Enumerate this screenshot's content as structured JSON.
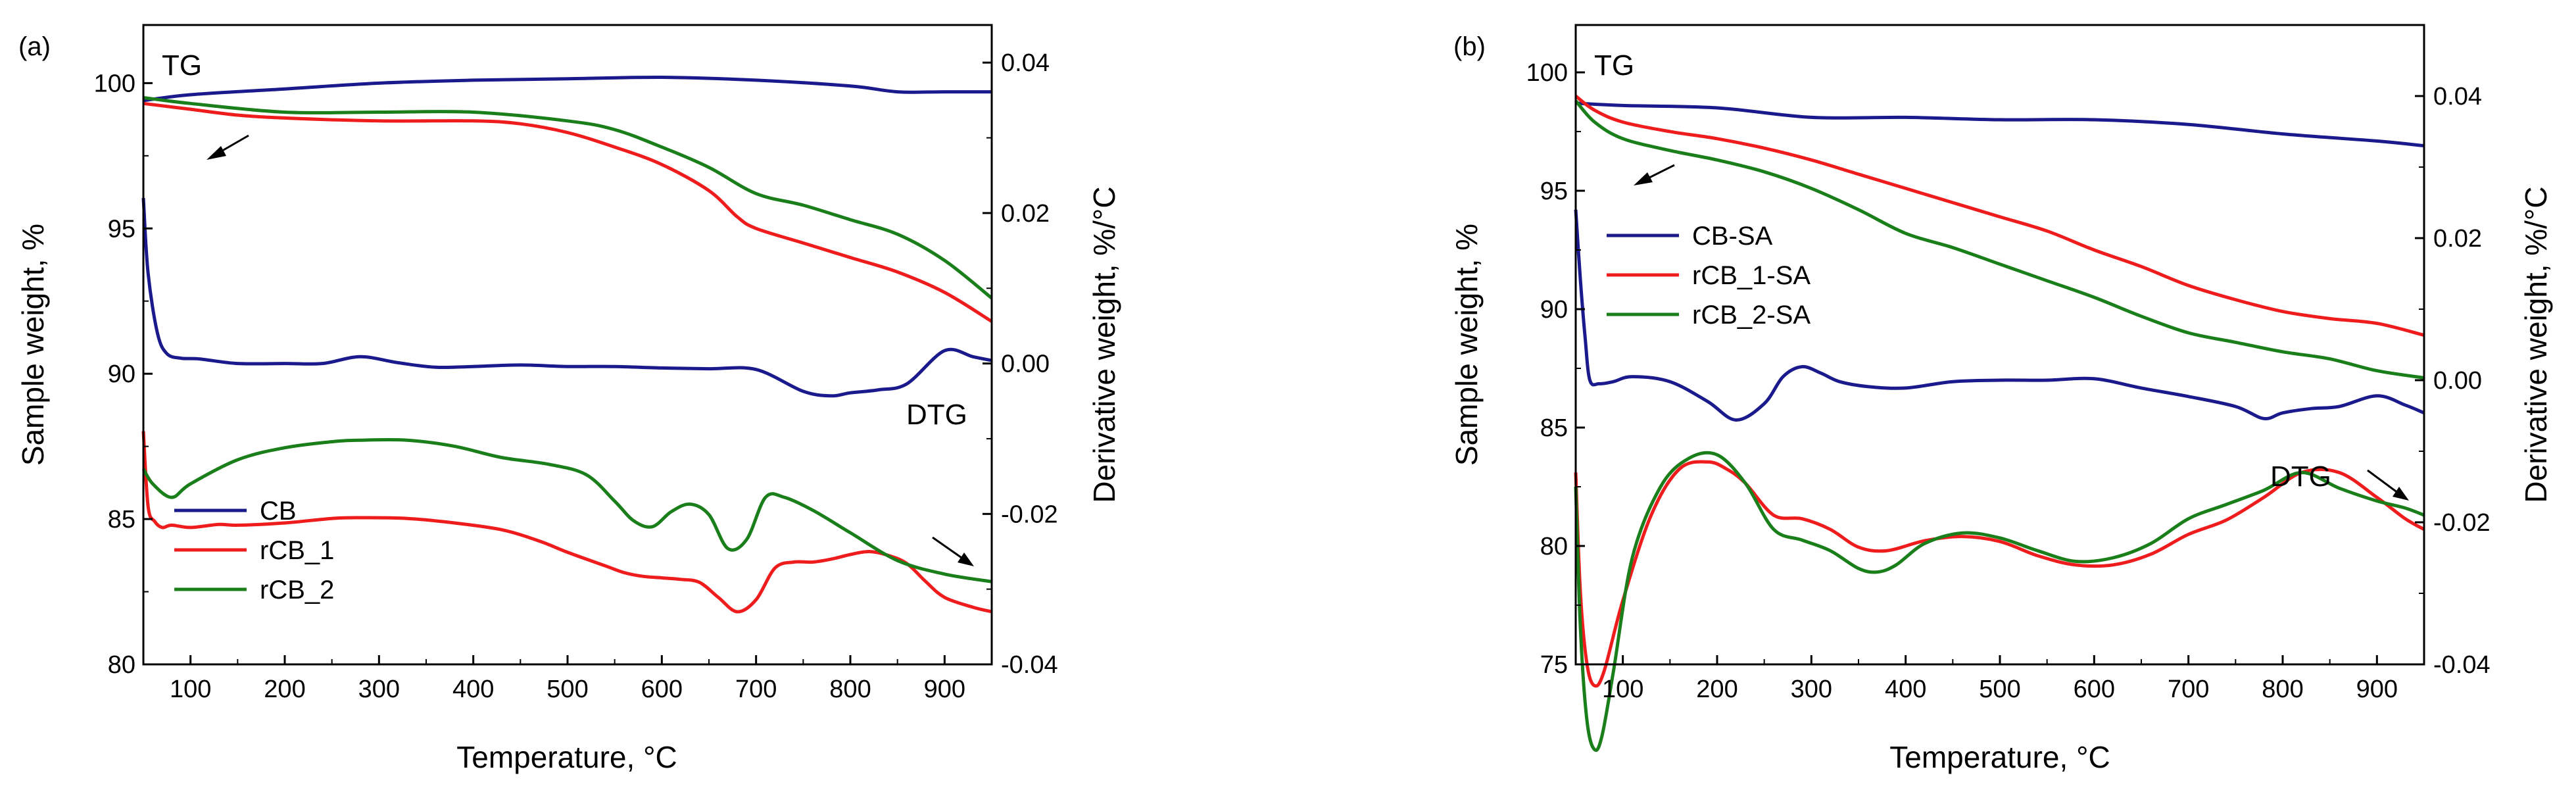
{
  "chart_data": [
    {
      "type": "line",
      "panel_label": "(a)",
      "xlabel": "Temperature, °C",
      "ylabel_left": "Sample weight, %",
      "ylabel_right": "Derivative weight, %/°C",
      "xlim": [
        50,
        950
      ],
      "ylim_left": [
        80,
        102
      ],
      "ylim_right": [
        -0.04,
        0.045
      ],
      "x_ticks": [
        100,
        200,
        300,
        400,
        500,
        600,
        700,
        800,
        900
      ],
      "y_left_ticks": [
        80,
        85,
        90,
        95,
        100
      ],
      "y_right_ticks": [
        -0.04,
        -0.02,
        0.0,
        0.02,
        0.04
      ],
      "y_right_tick_labels": [
        "-0.04",
        "-0.02",
        "0.00",
        "0.02",
        "0.04"
      ],
      "annotations": {
        "tg": "TG",
        "dtg": "DTG"
      },
      "legend": [
        "CB",
        "rCB_1",
        "rCB_2"
      ],
      "colors": [
        "#1a1a8c",
        "#ee1c1c",
        "#1a7f1a"
      ],
      "tg_series": [
        {
          "name": "CB",
          "x": [
            50,
            100,
            200,
            300,
            400,
            500,
            600,
            700,
            800,
            850,
            900,
            950
          ],
          "y": [
            99.4,
            99.6,
            99.8,
            100.0,
            100.1,
            100.15,
            100.2,
            100.1,
            99.9,
            99.7,
            99.7,
            99.7
          ]
        },
        {
          "name": "rCB_1",
          "x": [
            50,
            100,
            150,
            200,
            300,
            400,
            450,
            500,
            550,
            600,
            650,
            680,
            700,
            750,
            800,
            850,
            900,
            950
          ],
          "y": [
            99.3,
            99.1,
            98.9,
            98.8,
            98.7,
            98.7,
            98.6,
            98.3,
            97.8,
            97.2,
            96.3,
            95.4,
            95.0,
            94.5,
            94.0,
            93.5,
            92.8,
            91.8
          ]
        },
        {
          "name": "rCB_2",
          "x": [
            50,
            100,
            200,
            300,
            400,
            500,
            550,
            600,
            650,
            700,
            750,
            800,
            850,
            900,
            950
          ],
          "y": [
            99.5,
            99.3,
            99.0,
            99.0,
            99.0,
            98.7,
            98.4,
            97.8,
            97.1,
            96.2,
            95.8,
            95.3,
            94.8,
            93.9,
            92.6
          ]
        }
      ],
      "dtg_series": [
        {
          "name": "CB",
          "x": [
            50,
            55,
            65,
            75,
            90,
            110,
            150,
            200,
            240,
            280,
            320,
            360,
            400,
            450,
            500,
            550,
            600,
            650,
            700,
            750,
            780,
            800,
            830,
            860,
            900,
            930,
            950
          ],
          "y": [
            0.022,
            0.012,
            0.004,
            0.0013,
            0.0007,
            0.0006,
            0.0,
            0.0,
            0.0,
            0.0009,
            0.0001,
            -0.0005,
            -0.0004,
            -0.0002,
            -0.0004,
            -0.0004,
            -0.0006,
            -0.0007,
            -0.0008,
            -0.0037,
            -0.0043,
            -0.0039,
            -0.0035,
            -0.0027,
            0.0017,
            0.0009,
            0.0004
          ]
        },
        {
          "name": "rCB_1",
          "x": [
            50,
            55,
            62,
            70,
            80,
            100,
            130,
            150,
            200,
            250,
            280,
            330,
            380,
            430,
            470,
            500,
            540,
            560,
            580,
            600,
            620,
            640,
            660,
            680,
            700,
            720,
            740,
            760,
            780,
            800,
            820,
            840,
            860,
            880,
            900,
            930,
            950
          ],
          "y": [
            -0.009,
            -0.019,
            -0.021,
            -0.0218,
            -0.0215,
            -0.0218,
            -0.0214,
            -0.0215,
            -0.0212,
            -0.0206,
            -0.0205,
            -0.0206,
            -0.0212,
            -0.0221,
            -0.0236,
            -0.0251,
            -0.0269,
            -0.0278,
            -0.0283,
            -0.0285,
            -0.0287,
            -0.0291,
            -0.0311,
            -0.033,
            -0.0314,
            -0.0272,
            -0.0264,
            -0.0264,
            -0.026,
            -0.0254,
            -0.025,
            -0.0255,
            -0.0266,
            -0.029,
            -0.0311,
            -0.0324,
            -0.033
          ]
        },
        {
          "name": "rCB_2",
          "x": [
            50,
            60,
            80,
            100,
            150,
            200,
            250,
            280,
            330,
            380,
            430,
            480,
            520,
            550,
            570,
            590,
            610,
            630,
            650,
            670,
            690,
            710,
            730,
            760,
            800,
            850,
            900,
            950
          ],
          "y": [
            -0.014,
            -0.016,
            -0.0178,
            -0.016,
            -0.0128,
            -0.0112,
            -0.0104,
            -0.0102,
            -0.0102,
            -0.011,
            -0.0125,
            -0.0134,
            -0.0148,
            -0.0183,
            -0.0209,
            -0.0217,
            -0.0197,
            -0.0187,
            -0.0201,
            -0.0246,
            -0.0234,
            -0.0178,
            -0.0178,
            -0.0195,
            -0.0225,
            -0.0262,
            -0.028,
            -0.029
          ]
        }
      ]
    },
    {
      "type": "line",
      "panel_label": "(b)",
      "xlabel": "Temperature, °C",
      "ylabel_left": "Sample weight, %",
      "ylabel_right": "Derivative weight, %/°C",
      "xlim": [
        50,
        950
      ],
      "ylim_left": [
        75,
        102
      ],
      "ylim_right": [
        -0.04,
        0.05
      ],
      "x_ticks": [
        100,
        200,
        300,
        400,
        500,
        600,
        700,
        800,
        900
      ],
      "y_left_ticks": [
        75,
        80,
        85,
        90,
        95,
        100
      ],
      "y_right_ticks": [
        -0.04,
        -0.02,
        0.0,
        0.02,
        0.04
      ],
      "y_right_tick_labels": [
        "-0.04",
        "-0.02",
        "0.00",
        "0.02",
        "0.04"
      ],
      "annotations": {
        "tg": "TG",
        "dtg": "DTG"
      },
      "legend": [
        "CB-SA",
        "rCB_1-SA",
        "rCB_2-SA"
      ],
      "colors": [
        "#1a1a8c",
        "#ee1c1c",
        "#1a7f1a"
      ],
      "tg_series": [
        {
          "name": "CB-SA",
          "x": [
            50,
            100,
            200,
            300,
            400,
            500,
            600,
            700,
            800,
            900,
            950
          ],
          "y": [
            98.7,
            98.6,
            98.5,
            98.1,
            98.1,
            98.0,
            98.0,
            97.8,
            97.4,
            97.1,
            96.9
          ]
        },
        {
          "name": "rCB_1-SA",
          "x": [
            50,
            70,
            100,
            150,
            200,
            250,
            300,
            350,
            400,
            450,
            500,
            550,
            600,
            650,
            700,
            750,
            800,
            850,
            900,
            950
          ],
          "y": [
            99.0,
            98.4,
            97.9,
            97.5,
            97.2,
            96.8,
            96.3,
            95.7,
            95.1,
            94.5,
            93.9,
            93.3,
            92.5,
            91.8,
            91.0,
            90.4,
            89.9,
            89.6,
            89.4,
            88.9
          ]
        },
        {
          "name": "rCB_2-SA",
          "x": [
            50,
            70,
            100,
            150,
            200,
            250,
            300,
            350,
            400,
            450,
            500,
            550,
            600,
            650,
            700,
            750,
            800,
            850,
            900,
            950
          ],
          "y": [
            98.8,
            97.9,
            97.2,
            96.7,
            96.3,
            95.8,
            95.1,
            94.2,
            93.2,
            92.6,
            91.9,
            91.2,
            90.5,
            89.7,
            89.0,
            88.6,
            88.2,
            87.9,
            87.4,
            87.1
          ]
        }
      ],
      "dtg_series": [
        {
          "name": "CB-SA",
          "x": [
            50,
            55,
            60,
            65,
            75,
            90,
            110,
            150,
            190,
            220,
            250,
            270,
            290,
            310,
            330,
            360,
            400,
            450,
            500,
            550,
            600,
            650,
            700,
            750,
            780,
            800,
            830,
            860,
            900,
            930,
            950
          ],
          "y": [
            0.024,
            0.014,
            0.006,
            0.0,
            -0.0005,
            -0.0002,
            0.0005,
            -0.0002,
            -0.003,
            -0.0056,
            -0.0033,
            0.0005,
            0.0019,
            0.001,
            -0.0002,
            -0.0009,
            -0.0011,
            -0.0002,
            0.0,
            0.0,
            0.0002,
            -0.0011,
            -0.0023,
            -0.0037,
            -0.0054,
            -0.0046,
            -0.004,
            -0.0037,
            -0.0022,
            -0.0035,
            -0.0046
          ]
        },
        {
          "name": "rCB_1-SA",
          "x": [
            50,
            55,
            62,
            70,
            80,
            100,
            130,
            160,
            190,
            210,
            230,
            260,
            290,
            320,
            350,
            380,
            420,
            460,
            500,
            540,
            580,
            620,
            660,
            700,
            740,
            780,
            820,
            860,
            900,
            930,
            950
          ],
          "y": [
            -0.013,
            -0.03,
            -0.04,
            -0.043,
            -0.041,
            -0.031,
            -0.019,
            -0.0125,
            -0.0115,
            -0.0125,
            -0.0145,
            -0.019,
            -0.0195,
            -0.021,
            -0.0235,
            -0.024,
            -0.0226,
            -0.022,
            -0.0227,
            -0.0247,
            -0.026,
            -0.026,
            -0.0245,
            -0.0217,
            -0.0197,
            -0.0165,
            -0.013,
            -0.013,
            -0.0165,
            -0.0195,
            -0.021
          ]
        },
        {
          "name": "rCB_2-SA",
          "x": [
            50,
            55,
            62,
            70,
            78,
            90,
            110,
            140,
            170,
            200,
            230,
            260,
            290,
            320,
            350,
            370,
            390,
            420,
            460,
            500,
            540,
            580,
            620,
            660,
            700,
            740,
            780,
            820,
            860,
            900,
            930,
            950
          ],
          "y": [
            -0.015,
            -0.035,
            -0.048,
            -0.052,
            -0.05,
            -0.041,
            -0.025,
            -0.015,
            -0.011,
            -0.0105,
            -0.0145,
            -0.021,
            -0.0225,
            -0.024,
            -0.0265,
            -0.027,
            -0.026,
            -0.023,
            -0.0215,
            -0.0222,
            -0.024,
            -0.0255,
            -0.025,
            -0.023,
            -0.0195,
            -0.0175,
            -0.0155,
            -0.013,
            -0.0152,
            -0.017,
            -0.018,
            -0.019
          ]
        }
      ]
    }
  ]
}
